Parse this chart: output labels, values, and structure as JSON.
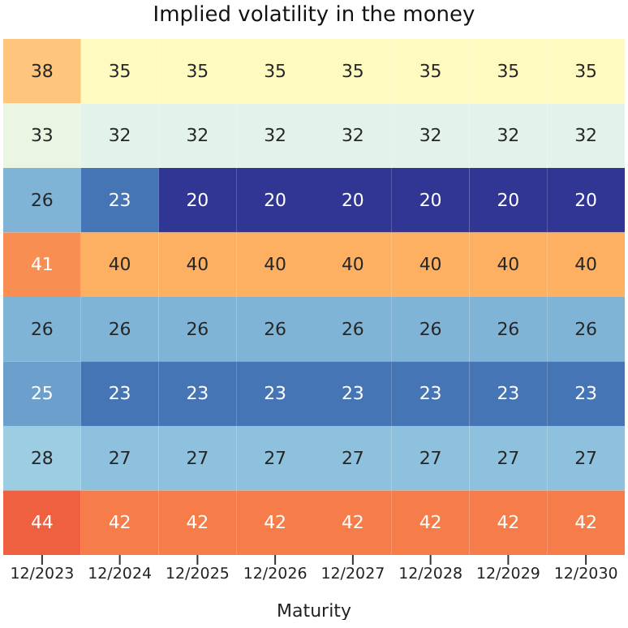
{
  "chart_data": {
    "type": "heatmap",
    "title": "Implied volatility in the money",
    "xlabel": "Maturity",
    "categories": [
      "12/2023",
      "12/2024",
      "12/2025",
      "12/2026",
      "12/2027",
      "12/2028",
      "12/2029",
      "12/2030"
    ],
    "y_categories": [
      null,
      null,
      null,
      null,
      null,
      null,
      null,
      null
    ],
    "cells": [
      [
        38,
        35,
        35,
        35,
        35,
        35,
        35,
        35
      ],
      [
        33,
        32,
        32,
        32,
        32,
        32,
        32,
        32
      ],
      [
        26,
        23,
        20,
        20,
        20,
        20,
        20,
        20
      ],
      [
        41,
        40,
        40,
        40,
        40,
        40,
        40,
        40
      ],
      [
        26,
        26,
        26,
        26,
        26,
        26,
        26,
        26
      ],
      [
        25,
        23,
        23,
        23,
        23,
        23,
        23,
        23
      ],
      [
        28,
        27,
        27,
        27,
        27,
        27,
        27,
        27
      ],
      [
        44,
        42,
        42,
        42,
        42,
        42,
        42,
        42
      ]
    ],
    "data_labels": true,
    "tick_labels": "x"
  }
}
